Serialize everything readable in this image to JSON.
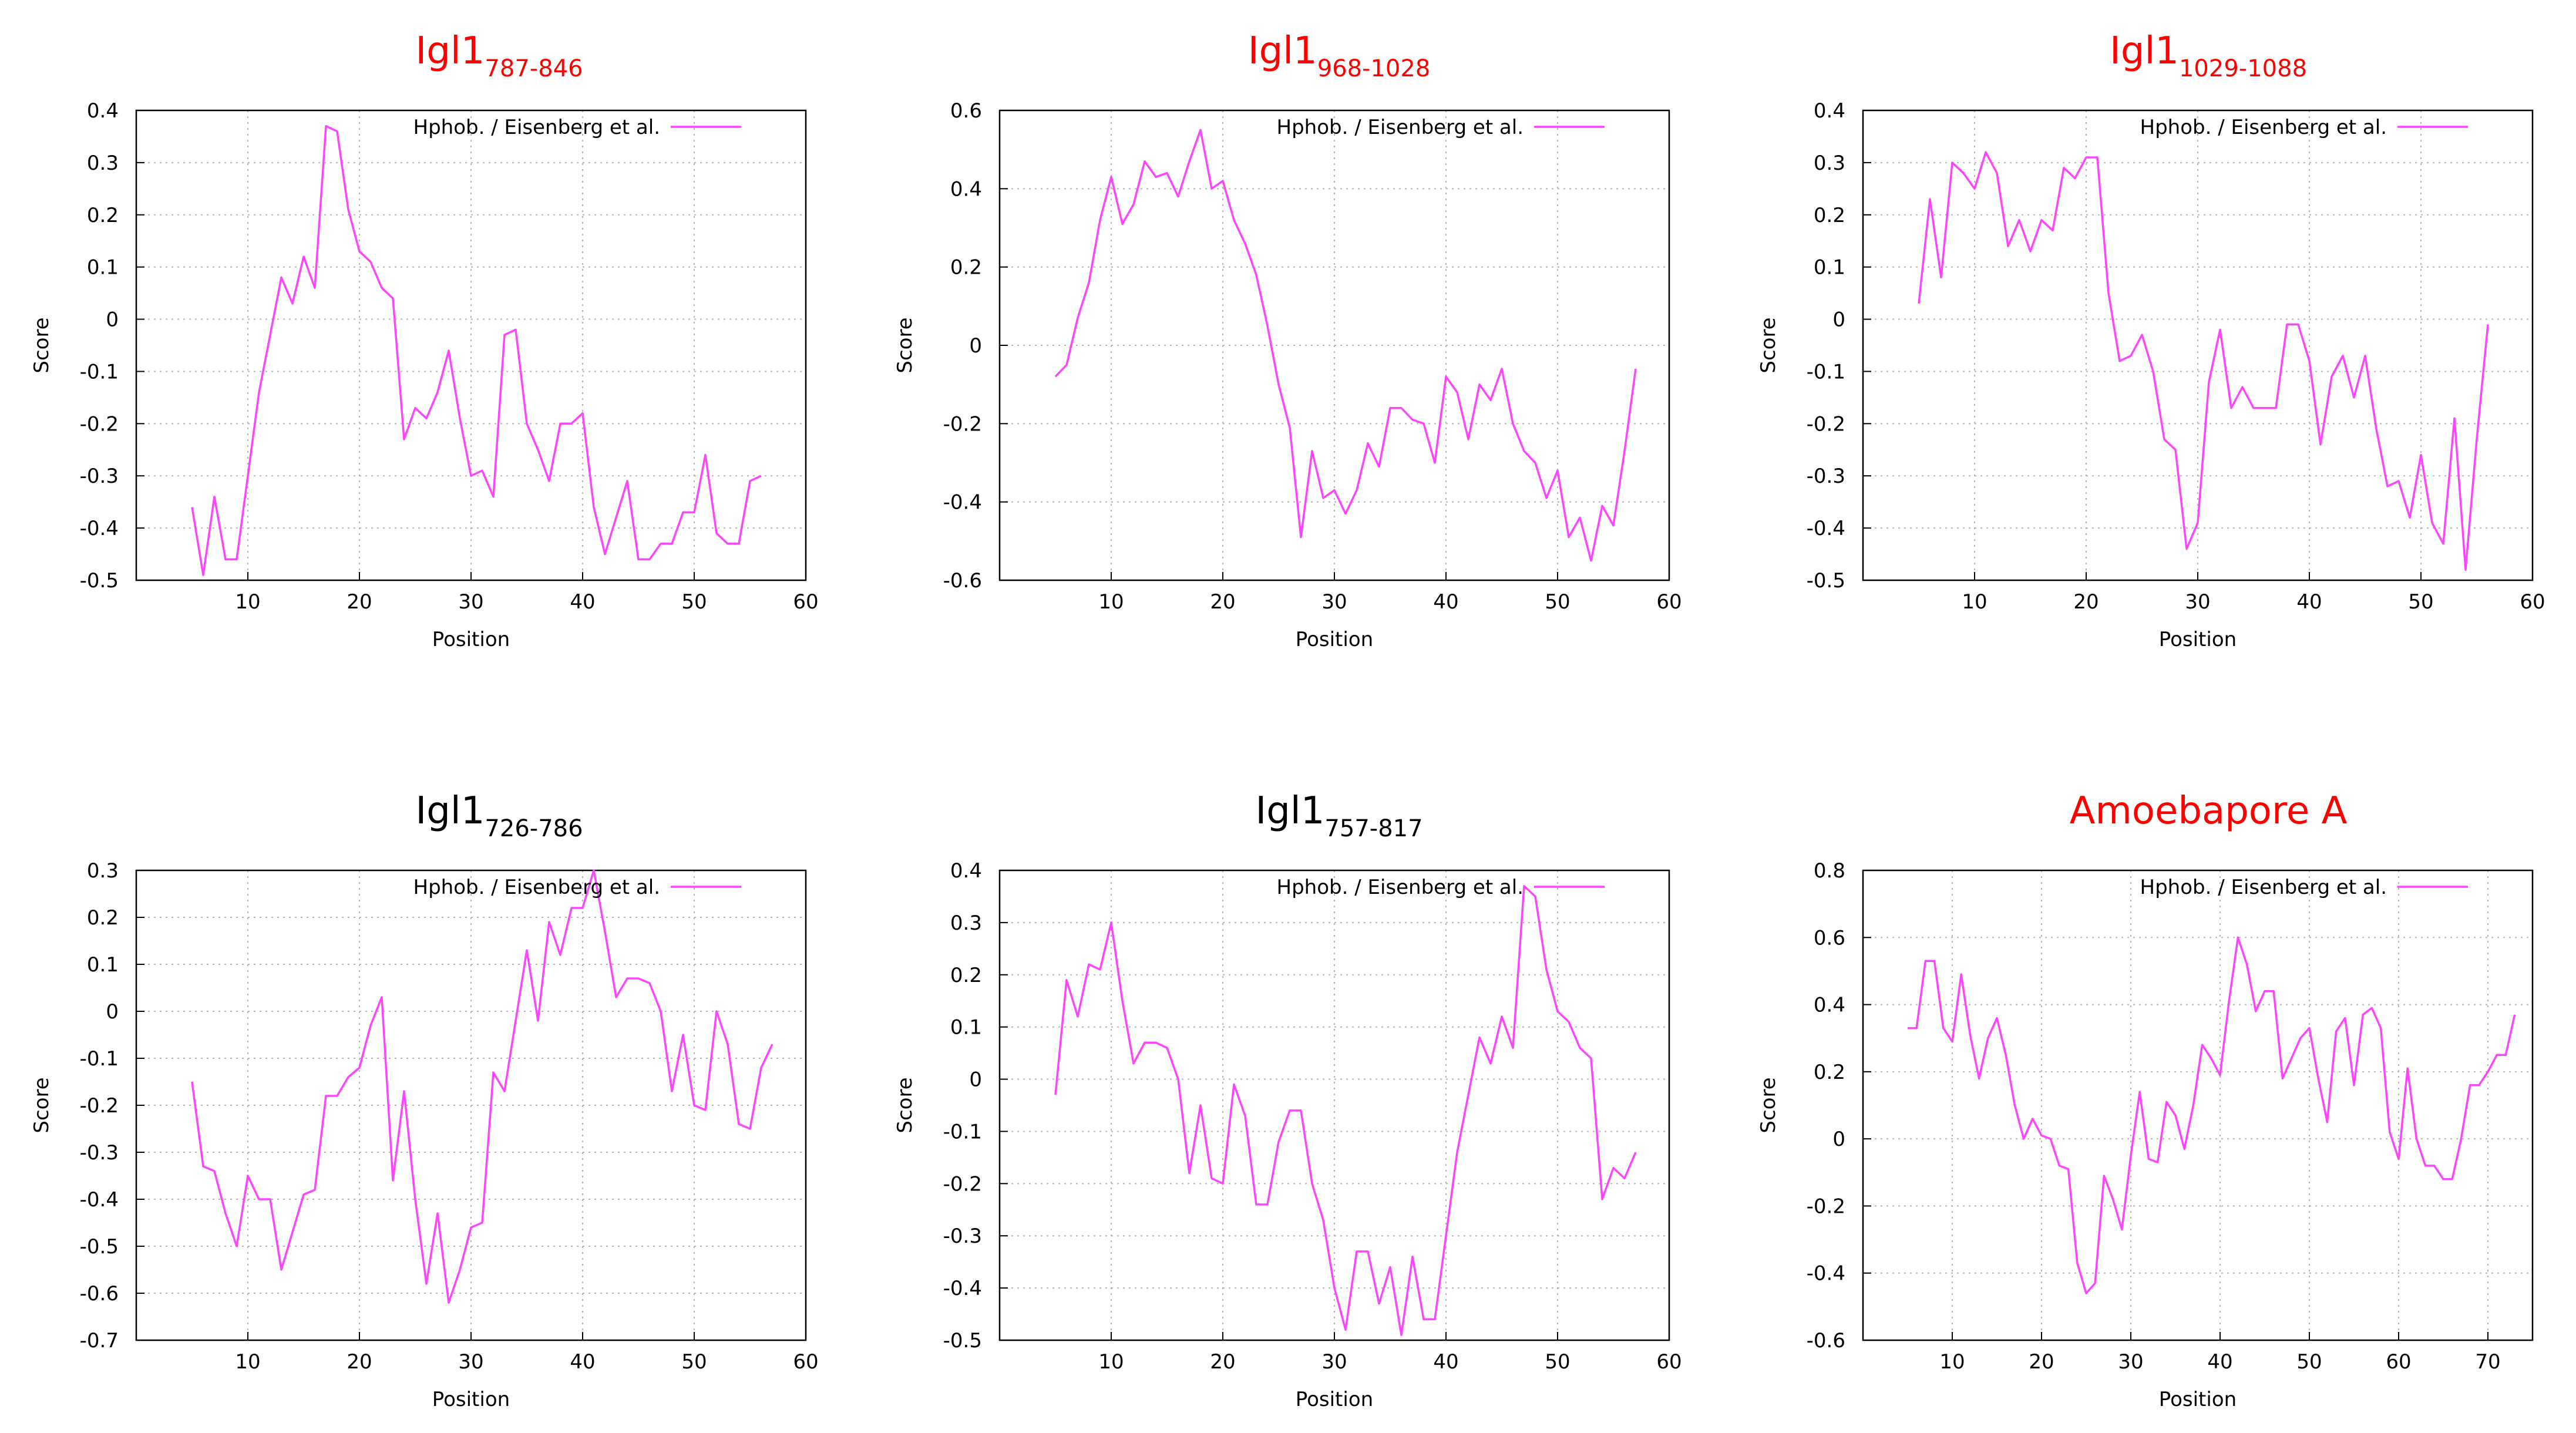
{
  "colors": {
    "series": "#ff44ff",
    "title_red": "#ff0000",
    "title_black": "#000000",
    "grid": "#b5b5b5"
  },
  "chart_data": [
    {
      "type": "line",
      "title": {
        "main": "Igl1",
        "sub": "787-846",
        "color": "#ff0000"
      },
      "xlabel": "Position",
      "ylabel": "Score",
      "xlim": [
        0,
        60
      ],
      "ylim": [
        -0.5,
        0.4
      ],
      "xticks": [
        10,
        20,
        30,
        40,
        50,
        60
      ],
      "yticks": [
        -0.5,
        -0.4,
        -0.3,
        -0.2,
        -0.1,
        0,
        0.1,
        0.2,
        0.3,
        0.4
      ],
      "grid": true,
      "legend_position": "top-right",
      "series": [
        {
          "name": "Hphob. / Eisenberg et al.",
          "x": [
            5,
            6,
            7,
            8,
            9,
            10,
            11,
            12,
            13,
            14,
            15,
            16,
            17,
            18,
            19,
            20,
            21,
            22,
            23,
            24,
            25,
            26,
            27,
            28,
            29,
            30,
            31,
            32,
            33,
            34,
            35,
            36,
            37,
            38,
            39,
            40,
            41,
            42,
            43,
            44,
            45,
            46,
            47,
            48,
            49,
            50,
            51,
            52,
            53,
            54,
            55,
            56
          ],
          "values": [
            -0.36,
            -0.49,
            -0.34,
            -0.46,
            -0.46,
            -0.3,
            -0.14,
            -0.03,
            0.08,
            0.03,
            0.12,
            0.06,
            0.37,
            0.36,
            0.21,
            0.13,
            0.11,
            0.06,
            0.04,
            -0.23,
            -0.17,
            -0.19,
            -0.14,
            -0.06,
            -0.19,
            -0.3,
            -0.29,
            -0.34,
            -0.03,
            -0.02,
            -0.2,
            -0.25,
            -0.31,
            -0.2,
            -0.2,
            -0.18,
            -0.36,
            -0.45,
            -0.38,
            -0.31,
            -0.46,
            -0.46,
            -0.43,
            -0.43,
            -0.37,
            -0.37,
            -0.26,
            -0.41,
            -0.43,
            -0.43,
            -0.31,
            -0.3
          ]
        }
      ]
    },
    {
      "type": "line",
      "title": {
        "main": "Igl1",
        "sub": "968-1028",
        "color": "#ff0000"
      },
      "xlabel": "Position",
      "ylabel": "Score",
      "xlim": [
        0,
        60
      ],
      "ylim": [
        -0.6,
        0.6
      ],
      "xticks": [
        10,
        20,
        30,
        40,
        50,
        60
      ],
      "yticks": [
        -0.6,
        -0.4,
        -0.2,
        0,
        0.2,
        0.4,
        0.6
      ],
      "grid": true,
      "legend_position": "top-right",
      "series": [
        {
          "name": "Hphob. / Eisenberg et al.",
          "x": [
            5,
            6,
            7,
            8,
            9,
            10,
            11,
            12,
            13,
            14,
            15,
            16,
            17,
            18,
            19,
            20,
            21,
            22,
            23,
            24,
            25,
            26,
            27,
            28,
            29,
            30,
            31,
            32,
            33,
            34,
            35,
            36,
            37,
            38,
            39,
            40,
            41,
            42,
            43,
            44,
            45,
            46,
            47,
            48,
            49,
            50,
            51,
            52,
            53,
            54,
            55,
            56,
            57
          ],
          "values": [
            -0.08,
            -0.05,
            0.07,
            0.16,
            0.32,
            0.43,
            0.31,
            0.36,
            0.47,
            0.43,
            0.44,
            0.38,
            0.47,
            0.55,
            0.4,
            0.42,
            0.32,
            0.26,
            0.18,
            0.05,
            -0.1,
            -0.21,
            -0.49,
            -0.27,
            -0.39,
            -0.37,
            -0.43,
            -0.37,
            -0.25,
            -0.31,
            -0.16,
            -0.16,
            -0.19,
            -0.2,
            -0.3,
            -0.08,
            -0.12,
            -0.24,
            -0.1,
            -0.14,
            -0.06,
            -0.2,
            -0.27,
            -0.3,
            -0.39,
            -0.32,
            -0.49,
            -0.44,
            -0.55,
            -0.41,
            -0.46,
            -0.27,
            -0.06
          ]
        }
      ]
    },
    {
      "type": "line",
      "title": {
        "main": "Igl1",
        "sub": "1029-1088",
        "color": "#ff0000"
      },
      "xlabel": "Position",
      "ylabel": "Score",
      "xlim": [
        0,
        60
      ],
      "ylim": [
        -0.5,
        0.4
      ],
      "xticks": [
        10,
        20,
        30,
        40,
        50,
        60
      ],
      "yticks": [
        -0.5,
        -0.4,
        -0.3,
        -0.2,
        -0.1,
        0,
        0.1,
        0.2,
        0.3,
        0.4
      ],
      "grid": true,
      "legend_position": "top-right",
      "series": [
        {
          "name": "Hphob. / Eisenberg et al.",
          "x": [
            5,
            6,
            7,
            8,
            9,
            10,
            11,
            12,
            13,
            14,
            15,
            16,
            17,
            18,
            19,
            20,
            21,
            22,
            23,
            24,
            25,
            26,
            27,
            28,
            29,
            30,
            31,
            32,
            33,
            34,
            35,
            36,
            37,
            38,
            39,
            40,
            41,
            42,
            43,
            44,
            45,
            46,
            47,
            48,
            49,
            50,
            51,
            52,
            53,
            54,
            55,
            56
          ],
          "values": [
            0.03,
            0.23,
            0.08,
            0.3,
            0.28,
            0.25,
            0.32,
            0.28,
            0.14,
            0.19,
            0.13,
            0.19,
            0.17,
            0.29,
            0.27,
            0.31,
            0.31,
            0.05,
            -0.08,
            -0.07,
            -0.03,
            -0.1,
            -0.23,
            -0.25,
            -0.44,
            -0.39,
            -0.12,
            -0.02,
            -0.17,
            -0.13,
            -0.17,
            -0.17,
            -0.17,
            -0.01,
            -0.01,
            -0.08,
            -0.24,
            -0.11,
            -0.07,
            -0.15,
            -0.07,
            -0.21,
            -0.32,
            -0.31,
            -0.38,
            -0.26,
            -0.39,
            -0.43,
            -0.19,
            -0.48,
            -0.23,
            -0.01
          ]
        }
      ]
    },
    {
      "type": "line",
      "title": {
        "main": "Igl1",
        "sub": "726-786",
        "color": "#000000"
      },
      "xlabel": "Position",
      "ylabel": "Score",
      "xlim": [
        0,
        60
      ],
      "ylim": [
        -0.7,
        0.3
      ],
      "xticks": [
        10,
        20,
        30,
        40,
        50,
        60
      ],
      "yticks": [
        -0.7,
        -0.6,
        -0.5,
        -0.4,
        -0.3,
        -0.2,
        -0.1,
        0,
        0.1,
        0.2,
        0.3
      ],
      "grid": true,
      "legend_position": "top-right",
      "series": [
        {
          "name": "Hphob. / Eisenberg et al.",
          "x": [
            5,
            6,
            7,
            8,
            9,
            10,
            11,
            12,
            13,
            14,
            15,
            16,
            17,
            18,
            19,
            20,
            21,
            22,
            23,
            24,
            25,
            26,
            27,
            28,
            29,
            30,
            31,
            32,
            33,
            34,
            35,
            36,
            37,
            38,
            39,
            40,
            41,
            42,
            43,
            44,
            45,
            46,
            47,
            48,
            49,
            50,
            51,
            52,
            53,
            54,
            55,
            56,
            57
          ],
          "values": [
            -0.15,
            -0.33,
            -0.34,
            -0.43,
            -0.5,
            -0.35,
            -0.4,
            -0.4,
            -0.55,
            -0.47,
            -0.39,
            -0.38,
            -0.18,
            -0.18,
            -0.14,
            -0.12,
            -0.03,
            0.03,
            -0.36,
            -0.17,
            -0.4,
            -0.58,
            -0.43,
            -0.62,
            -0.55,
            -0.46,
            -0.45,
            -0.13,
            -0.17,
            -0.02,
            0.13,
            -0.02,
            0.19,
            0.12,
            0.22,
            0.22,
            0.3,
            0.17,
            0.03,
            0.07,
            0.07,
            0.06,
            0.0,
            -0.17,
            -0.05,
            -0.2,
            -0.21,
            0.0,
            -0.07,
            -0.24,
            -0.25,
            -0.12,
            -0.07
          ]
        }
      ]
    },
    {
      "type": "line",
      "title": {
        "main": "Igl1",
        "sub": "757-817",
        "color": "#000000"
      },
      "xlabel": "Position",
      "ylabel": "Score",
      "xlim": [
        0,
        60
      ],
      "ylim": [
        -0.5,
        0.4
      ],
      "xticks": [
        10,
        20,
        30,
        40,
        50,
        60
      ],
      "yticks": [
        -0.5,
        -0.4,
        -0.3,
        -0.2,
        -0.1,
        0,
        0.1,
        0.2,
        0.3,
        0.4
      ],
      "grid": true,
      "legend_position": "top-right",
      "series": [
        {
          "name": "Hphob. / Eisenberg et al.",
          "x": [
            5,
            6,
            7,
            8,
            9,
            10,
            11,
            12,
            13,
            14,
            15,
            16,
            17,
            18,
            19,
            20,
            21,
            22,
            23,
            24,
            25,
            26,
            27,
            28,
            29,
            30,
            31,
            32,
            33,
            34,
            35,
            36,
            37,
            38,
            39,
            40,
            41,
            42,
            43,
            44,
            45,
            46,
            47,
            48,
            49,
            50,
            51,
            52,
            53,
            54,
            55,
            56,
            57
          ],
          "values": [
            -0.03,
            0.19,
            0.12,
            0.22,
            0.21,
            0.3,
            0.15,
            0.03,
            0.07,
            0.07,
            0.06,
            0.0,
            -0.18,
            -0.05,
            -0.19,
            -0.2,
            -0.01,
            -0.07,
            -0.24,
            -0.24,
            -0.12,
            -0.06,
            -0.06,
            -0.2,
            -0.27,
            -0.4,
            -0.48,
            -0.33,
            -0.33,
            -0.43,
            -0.36,
            -0.49,
            -0.34,
            -0.46,
            -0.46,
            -0.3,
            -0.14,
            -0.03,
            0.08,
            0.03,
            0.12,
            0.06,
            0.37,
            0.35,
            0.21,
            0.13,
            0.11,
            0.06,
            0.04,
            -0.23,
            -0.17,
            -0.19,
            -0.14
          ]
        }
      ]
    },
    {
      "type": "line",
      "title": {
        "main": "Amoebapore A",
        "sub": "",
        "color": "#ff0000"
      },
      "xlabel": "Position",
      "ylabel": "Score",
      "xlim": [
        0,
        75
      ],
      "ylim": [
        -0.6,
        0.8
      ],
      "xticks": [
        10,
        20,
        30,
        40,
        50,
        60,
        70
      ],
      "yticks": [
        -0.6,
        -0.4,
        -0.2,
        0,
        0.2,
        0.4,
        0.6,
        0.8
      ],
      "grid": true,
      "legend_position": "top-right",
      "series": [
        {
          "name": "Hphob. / Eisenberg et al.",
          "x": [
            5,
            6,
            7,
            8,
            9,
            10,
            11,
            12,
            13,
            14,
            15,
            16,
            17,
            18,
            19,
            20,
            21,
            22,
            23,
            24,
            25,
            26,
            27,
            28,
            29,
            30,
            31,
            32,
            33,
            34,
            35,
            36,
            37,
            38,
            39,
            40,
            41,
            42,
            43,
            44,
            45,
            46,
            47,
            48,
            49,
            50,
            51,
            52,
            53,
            54,
            55,
            56,
            57,
            58,
            59,
            60,
            61,
            62,
            63,
            64,
            65,
            66,
            67,
            68,
            69,
            70,
            71,
            72,
            73
          ],
          "values": [
            0.33,
            0.33,
            0.53,
            0.53,
            0.33,
            0.29,
            0.49,
            0.31,
            0.18,
            0.3,
            0.36,
            0.25,
            0.1,
            0.0,
            0.06,
            0.01,
            0.0,
            -0.08,
            -0.09,
            -0.37,
            -0.46,
            -0.43,
            -0.11,
            -0.18,
            -0.27,
            -0.05,
            0.14,
            -0.06,
            -0.07,
            0.11,
            0.07,
            -0.03,
            0.1,
            0.28,
            0.24,
            0.19,
            0.41,
            0.6,
            0.52,
            0.38,
            0.44,
            0.44,
            0.18,
            0.24,
            0.3,
            0.33,
            0.18,
            0.05,
            0.32,
            0.36,
            0.16,
            0.37,
            0.39,
            0.33,
            0.02,
            -0.06,
            0.21,
            0.0,
            -0.08,
            -0.08,
            -0.12,
            -0.12,
            0.0,
            0.16,
            0.16,
            0.2,
            0.25,
            0.25,
            0.37
          ]
        }
      ]
    }
  ]
}
